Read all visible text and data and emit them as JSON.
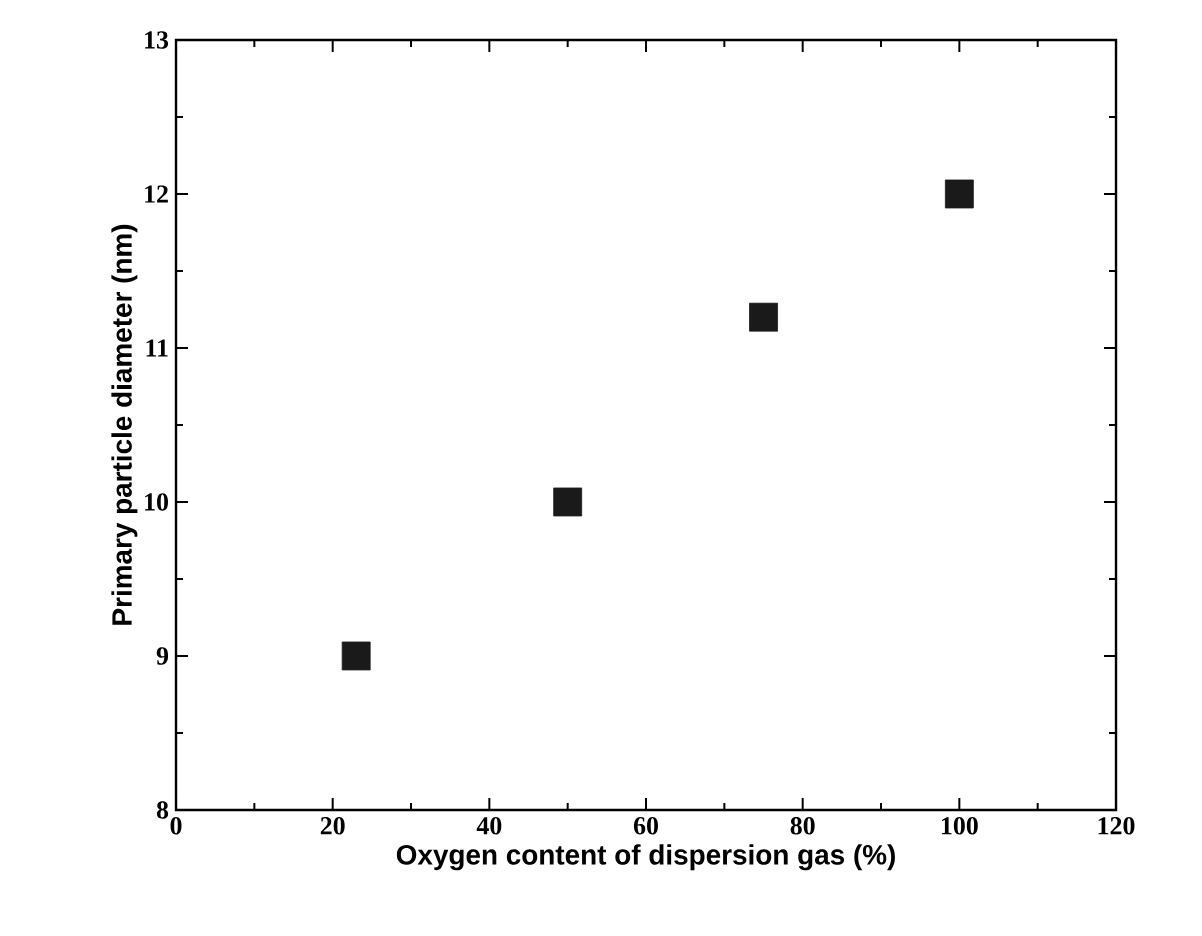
{
  "chart_data": {
    "type": "scatter",
    "xlabel": "Oxygen content of dispersion gas (%)",
    "ylabel": "Primary particle diameter (nm)",
    "x": [
      23,
      50,
      75,
      100
    ],
    "values": [
      9,
      10,
      11.2,
      12
    ],
    "color": "#1a1a1a",
    "marker": "square",
    "grid": false,
    "xlim": [
      0,
      120
    ],
    "xticks": [
      0,
      20,
      40,
      60,
      80,
      100,
      120
    ],
    "ylim": [
      8,
      13
    ],
    "yticks": [
      8,
      9,
      10,
      11,
      12,
      13
    ]
  }
}
